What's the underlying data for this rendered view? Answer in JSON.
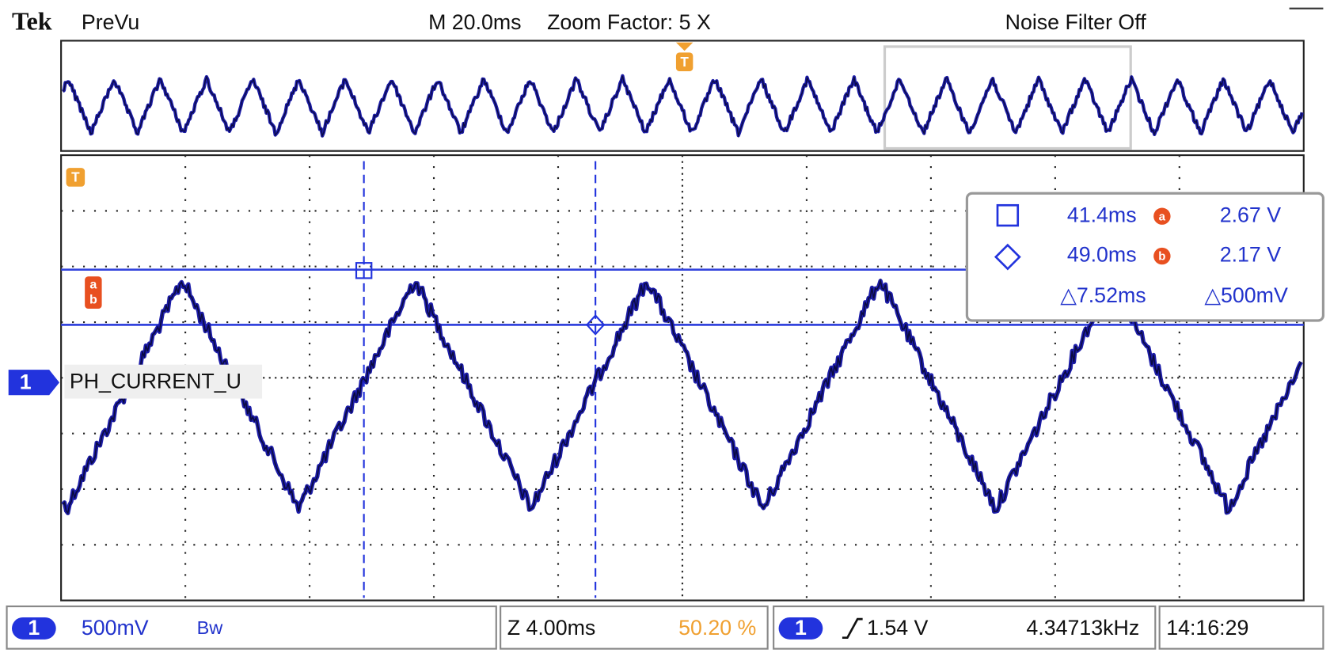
{
  "header": {
    "brand": "Tek",
    "mode": "PreVu",
    "timebase": "M 20.0ms",
    "zoom": "Zoom Factor: 5 X",
    "filter": "Noise Filter Off"
  },
  "markers": {
    "trigger_top": "T",
    "trigger_level": "T",
    "cursor_a": "a",
    "cursor_b": "b"
  },
  "channel": {
    "number": "1",
    "label": "PH_CURRENT_U"
  },
  "readout": {
    "cursor1_time": "41.4ms",
    "cursor_a_label": "a",
    "cursor_a_value": "2.67 V",
    "cursor2_time": "49.0ms",
    "cursor_b_label": "b",
    "cursor_b_value": "2.17 V",
    "delta_time": "△7.52ms",
    "delta_volt": "△500mV"
  },
  "footer": {
    "channel": "1",
    "scale": "500mV",
    "bandwidth": "Bw",
    "zoom_scale": "Z 4.00ms",
    "position": "50.20 %",
    "trigger_channel": "1",
    "trigger_level": "1.54 V",
    "frequency": "4.34713kHz",
    "time": "14:16:29"
  }
}
